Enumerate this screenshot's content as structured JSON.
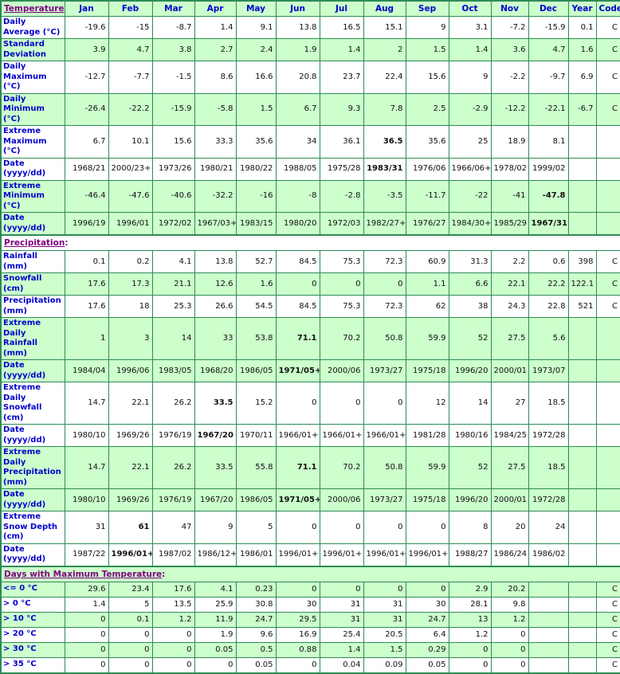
{
  "colors": {
    "green": "#ccffcc",
    "white": "#ffffff",
    "border": "#2e8b57",
    "labelblue": "#0000cc",
    "purple": "#800080",
    "text": "#111111"
  },
  "columns": [
    "Jan",
    "Feb",
    "Mar",
    "Apr",
    "May",
    "Jun",
    "Jul",
    "Aug",
    "Sep",
    "Oct",
    "Nov",
    "Dec",
    "Year",
    "Code"
  ],
  "rows": [
    {
      "type": "header",
      "title": "Temperature",
      "colon": ":",
      "bg": "g"
    },
    {
      "type": "data",
      "label": "Daily Average (°C)",
      "bg": "w",
      "cells": [
        "-19.6",
        "-15",
        "-8.7",
        "1.4",
        "9.1",
        "13.8",
        "16.5",
        "15.1",
        "9",
        "3.1",
        "-7.2",
        "-15.9",
        "0.1",
        "C"
      ],
      "bold": []
    },
    {
      "type": "data",
      "label": "Standard Deviation",
      "bg": "g",
      "cells": [
        "3.9",
        "4.7",
        "3.8",
        "2.7",
        "2.4",
        "1.9",
        "1.4",
        "2",
        "1.5",
        "1.4",
        "3.6",
        "4.7",
        "1.6",
        "C"
      ],
      "bold": []
    },
    {
      "type": "data",
      "label": "Daily Maximum (°C)",
      "bg": "w",
      "cells": [
        "-12.7",
        "-7.7",
        "-1.5",
        "8.6",
        "16.6",
        "20.8",
        "23.7",
        "22.4",
        "15.6",
        "9",
        "-2.2",
        "-9.7",
        "6.9",
        "C"
      ],
      "bold": []
    },
    {
      "type": "data",
      "label": "Daily Minimum (°C)",
      "bg": "g",
      "cells": [
        "-26.4",
        "-22.2",
        "-15.9",
        "-5.8",
        "1.5",
        "6.7",
        "9.3",
        "7.8",
        "2.5",
        "-2.9",
        "-12.2",
        "-22.1",
        "-6.7",
        "C"
      ],
      "bold": []
    },
    {
      "type": "data",
      "label": "Extreme Maximum (°C)",
      "bg": "w",
      "cells": [
        "6.7",
        "10.1",
        "15.6",
        "33.3",
        "35.6",
        "34",
        "36.1",
        "36.5",
        "35.6",
        "25",
        "18.9",
        "8.1",
        "",
        ""
      ],
      "bold": [
        7
      ]
    },
    {
      "type": "data",
      "label": "Date (yyyy/dd)",
      "bg": "w",
      "cells": [
        "1968/21",
        "2000/23+",
        "1973/26",
        "1980/21",
        "1980/22",
        "1988/05",
        "1975/28",
        "1983/31",
        "1976/06",
        "1966/06+",
        "1978/02",
        "1999/02",
        "",
        ""
      ],
      "bold": [
        7
      ]
    },
    {
      "type": "data",
      "label": "Extreme Minimum (°C)",
      "bg": "g",
      "cells": [
        "-46.4",
        "-47.6",
        "-40.6",
        "-32.2",
        "-16",
        "-8",
        "-2.8",
        "-3.5",
        "-11.7",
        "-22",
        "-41",
        "-47.8",
        "",
        ""
      ],
      "bold": [
        11
      ]
    },
    {
      "type": "data",
      "label": "Date (yyyy/dd)",
      "bg": "g",
      "cells": [
        "1996/19",
        "1996/01",
        "1972/02",
        "1967/03+",
        "1983/15",
        "1980/20",
        "1972/03",
        "1982/27+",
        "1976/27",
        "1984/30+",
        "1985/29",
        "1967/31",
        "",
        ""
      ],
      "bold": [
        11
      ]
    },
    {
      "type": "section",
      "title": "Precipitation",
      "colon": ":",
      "bg": "w",
      "thickTop": true
    },
    {
      "type": "data",
      "label": "Rainfall (mm)",
      "bg": "w",
      "cells": [
        "0.1",
        "0.2",
        "4.1",
        "13.8",
        "52.7",
        "84.5",
        "75.3",
        "72.3",
        "60.9",
        "31.3",
        "2.2",
        "0.6",
        "398",
        "C"
      ],
      "bold": []
    },
    {
      "type": "data",
      "label": "Snowfall (cm)",
      "bg": "g",
      "cells": [
        "17.6",
        "17.3",
        "21.1",
        "12.6",
        "1.6",
        "0",
        "0",
        "0",
        "1.1",
        "6.6",
        "22.1",
        "22.2",
        "122.1",
        "C"
      ],
      "bold": []
    },
    {
      "type": "data",
      "label": "Precipitation (mm)",
      "bg": "w",
      "cells": [
        "17.6",
        "18",
        "25.3",
        "26.6",
        "54.5",
        "84.5",
        "75.3",
        "72.3",
        "62",
        "38",
        "24.3",
        "22.8",
        "521",
        "C"
      ],
      "bold": []
    },
    {
      "type": "data",
      "label": "Extreme Daily Rainfall (mm)",
      "bg": "g",
      "cells": [
        "1",
        "3",
        "14",
        "33",
        "53.8",
        "71.1",
        "70.2",
        "50.8",
        "59.9",
        "52",
        "27.5",
        "5.6",
        "",
        ""
      ],
      "bold": [
        5
      ]
    },
    {
      "type": "data",
      "label": "Date (yyyy/dd)",
      "bg": "g",
      "cells": [
        "1984/04",
        "1996/06",
        "1983/05",
        "1968/20",
        "1986/05",
        "1971/05+",
        "2000/06",
        "1973/27",
        "1975/18",
        "1996/20",
        "2000/01",
        "1973/07",
        "",
        ""
      ],
      "bold": [
        5
      ]
    },
    {
      "type": "data",
      "label": "Extreme Daily Snowfall (cm)",
      "bg": "w",
      "cells": [
        "14.7",
        "22.1",
        "26.2",
        "33.5",
        "15.2",
        "0",
        "0",
        "0",
        "12",
        "14",
        "27",
        "18.5",
        "",
        ""
      ],
      "bold": [
        3
      ]
    },
    {
      "type": "data",
      "label": "Date (yyyy/dd)",
      "bg": "w",
      "cells": [
        "1980/10",
        "1969/26",
        "1976/19",
        "1967/20",
        "1970/11",
        "1966/01+",
        "1966/01+",
        "1966/01+",
        "1981/28",
        "1980/16",
        "1984/25",
        "1972/28",
        "",
        ""
      ],
      "bold": [
        3
      ]
    },
    {
      "type": "data",
      "label": "Extreme Daily Precipitation (mm)",
      "bg": "g",
      "cells": [
        "14.7",
        "22.1",
        "26.2",
        "33.5",
        "55.8",
        "71.1",
        "70.2",
        "50.8",
        "59.9",
        "52",
        "27.5",
        "18.5",
        "",
        ""
      ],
      "bold": [
        5
      ]
    },
    {
      "type": "data",
      "label": "Date (yyyy/dd)",
      "bg": "g",
      "cells": [
        "1980/10",
        "1969/26",
        "1976/19",
        "1967/20",
        "1986/05",
        "1971/05+",
        "2000/06",
        "1973/27",
        "1975/18",
        "1996/20",
        "2000/01",
        "1972/28",
        "",
        ""
      ],
      "bold": [
        5
      ]
    },
    {
      "type": "data",
      "label": "Extreme Snow Depth (cm)",
      "bg": "w",
      "cells": [
        "31",
        "61",
        "47",
        "9",
        "5",
        "0",
        "0",
        "0",
        "0",
        "8",
        "20",
        "24",
        "",
        ""
      ],
      "bold": [
        1
      ]
    },
    {
      "type": "data",
      "label": "Date (yyyy/dd)",
      "bg": "w",
      "cells": [
        "1987/22",
        "1996/01+",
        "1987/02",
        "1986/12+",
        "1986/01",
        "1996/01+",
        "1996/01+",
        "1996/01+",
        "1996/01+",
        "1988/27",
        "1986/24",
        "1986/02",
        "",
        ""
      ],
      "bold": [
        1
      ]
    },
    {
      "type": "section",
      "title": "Days with Maximum Temperature",
      "colon": ":",
      "bg": "g",
      "thickTop": true
    },
    {
      "type": "data",
      "label": "<= 0 °C",
      "bg": "g",
      "cells": [
        "29.6",
        "23.4",
        "17.6",
        "4.1",
        "0.23",
        "0",
        "0",
        "0",
        "0",
        "2.9",
        "20.2",
        "",
        "",
        "C"
      ],
      "bold": []
    },
    {
      "type": "data",
      "label": "> 0 °C",
      "bg": "w",
      "cells": [
        "1.4",
        "5",
        "13.5",
        "25.9",
        "30.8",
        "30",
        "31",
        "31",
        "30",
        "28.1",
        "9.8",
        "",
        "",
        "C"
      ],
      "bold": []
    },
    {
      "type": "data",
      "label": "> 10 °C",
      "bg": "g",
      "cells": [
        "0",
        "0.1",
        "1.2",
        "11.9",
        "24.7",
        "29.5",
        "31",
        "31",
        "24.7",
        "13",
        "1.2",
        "",
        "",
        "C"
      ],
      "bold": []
    },
    {
      "type": "data",
      "label": "> 20 °C",
      "bg": "w",
      "cells": [
        "0",
        "0",
        "0",
        "1.9",
        "9.6",
        "16.9",
        "25.4",
        "20.5",
        "6.4",
        "1.2",
        "0",
        "",
        "",
        "C"
      ],
      "bold": []
    },
    {
      "type": "data",
      "label": "> 30 °C",
      "bg": "g",
      "cells": [
        "0",
        "0",
        "0",
        "0.05",
        "0.5",
        "0.88",
        "1.4",
        "1.5",
        "0.29",
        "0",
        "0",
        "",
        "",
        "C"
      ],
      "bold": []
    },
    {
      "type": "data",
      "label": "> 35 °C",
      "bg": "w",
      "cells": [
        "0",
        "0",
        "0",
        "0",
        "0.05",
        "0",
        "0.04",
        "0.09",
        "0.05",
        "0",
        "0",
        "",
        "",
        "C"
      ],
      "bold": []
    }
  ]
}
